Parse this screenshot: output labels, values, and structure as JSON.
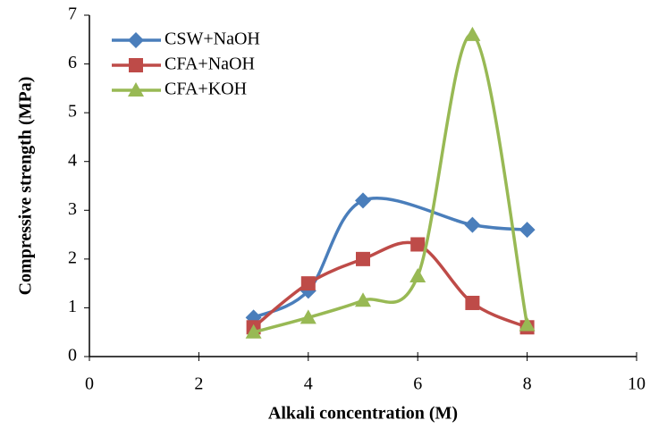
{
  "chart_data": {
    "type": "line",
    "smooth": true,
    "xlabel": "Alkali concentration (M)",
    "ylabel": "Compressive strength (MPa)",
    "xlim": [
      0,
      10
    ],
    "xticks": [
      0,
      2,
      4,
      6,
      8,
      10
    ],
    "ylim": [
      0,
      7
    ],
    "yticks": [
      0,
      1,
      2,
      3,
      4,
      5,
      6,
      7
    ],
    "legend": "upper-left",
    "series": [
      {
        "name": "CSW+NaOH",
        "color": "#4a7ebb",
        "marker": "diamond",
        "x": [
          3,
          4,
          5,
          7,
          8
        ],
        "values": [
          0.8,
          1.35,
          3.2,
          2.7,
          2.6
        ]
      },
      {
        "name": "CFA+NaOH",
        "color": "#be4b48",
        "marker": "square",
        "x": [
          3,
          4,
          5,
          6,
          7,
          8
        ],
        "values": [
          0.6,
          1.5,
          2.0,
          2.3,
          1.1,
          0.6
        ]
      },
      {
        "name": "CFA+KOH",
        "color": "#98b954",
        "marker": "triangle",
        "x": [
          3,
          4,
          5,
          6,
          7,
          8
        ],
        "values": [
          0.5,
          0.8,
          1.15,
          1.65,
          6.6,
          0.65
        ]
      }
    ]
  }
}
